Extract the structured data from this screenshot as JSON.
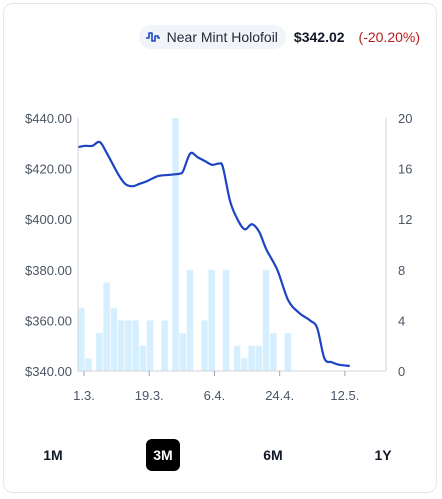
{
  "header": {
    "variant_label": "Near Mint Holofoil",
    "price": "$342.02",
    "change": "(-20.20%)",
    "change_color": "#b91c1c"
  },
  "ranges": {
    "options": [
      "1M",
      "3M",
      "6M",
      "1Y"
    ],
    "selected": "3M"
  },
  "chart_data": {
    "type": "line",
    "x_tick_labels": [
      "1.3.",
      "19.3.",
      "6.4.",
      "24.4.",
      "12.5."
    ],
    "y_left": {
      "ticks": [
        "$440.00",
        "$420.00",
        "$400.00",
        "$380.00",
        "$360.00",
        "$340.00"
      ],
      "range": [
        340,
        440
      ]
    },
    "y_right": {
      "ticks": [
        "20",
        "16",
        "12",
        "8",
        "4",
        "0"
      ],
      "range": [
        0,
        20
      ]
    },
    "x_range": [
      0,
      85
    ],
    "x_tick_positions": [
      0,
      18,
      36,
      54,
      72
    ],
    "series": [
      {
        "type": "line",
        "color": "#1d44c2",
        "points": [
          [
            0,
            428.5
          ],
          [
            2,
            429
          ],
          [
            4,
            429
          ],
          [
            6,
            430.5
          ],
          [
            8,
            426
          ],
          [
            11,
            418
          ],
          [
            13,
            414
          ],
          [
            15,
            413
          ],
          [
            17,
            414
          ],
          [
            19,
            415
          ],
          [
            22,
            417
          ],
          [
            25,
            417.5
          ],
          [
            28,
            418
          ],
          [
            29,
            419
          ],
          [
            31,
            426
          ],
          [
            33,
            424.5
          ],
          [
            35,
            423
          ],
          [
            37,
            421.5
          ],
          [
            39,
            422
          ],
          [
            40,
            420.5
          ],
          [
            42,
            407
          ],
          [
            44,
            400
          ],
          [
            46,
            396
          ],
          [
            48,
            398
          ],
          [
            50,
            395
          ],
          [
            52,
            388
          ],
          [
            55,
            380
          ],
          [
            58,
            368
          ],
          [
            61,
            363
          ],
          [
            64,
            360
          ],
          [
            66,
            357
          ],
          [
            68,
            345
          ],
          [
            70,
            343.5
          ],
          [
            72,
            342.5
          ],
          [
            75,
            342
          ]
        ]
      },
      {
        "type": "bar",
        "color": "#d6efff",
        "axis": "right",
        "bars": [
          [
            0,
            5
          ],
          [
            2,
            1
          ],
          [
            5,
            3
          ],
          [
            7,
            7
          ],
          [
            9,
            5
          ],
          [
            11,
            4
          ],
          [
            13,
            4
          ],
          [
            15,
            4
          ],
          [
            17,
            2
          ],
          [
            19,
            4
          ],
          [
            23,
            4
          ],
          [
            26,
            20
          ],
          [
            28,
            3
          ],
          [
            30,
            8
          ],
          [
            34,
            4
          ],
          [
            36,
            8
          ],
          [
            40,
            8
          ],
          [
            43,
            2
          ],
          [
            45,
            1
          ],
          [
            47,
            2
          ],
          [
            49,
            2
          ],
          [
            51,
            8
          ],
          [
            53,
            3
          ],
          [
            57,
            3
          ]
        ]
      }
    ],
    "grid": false,
    "legend": "none"
  }
}
